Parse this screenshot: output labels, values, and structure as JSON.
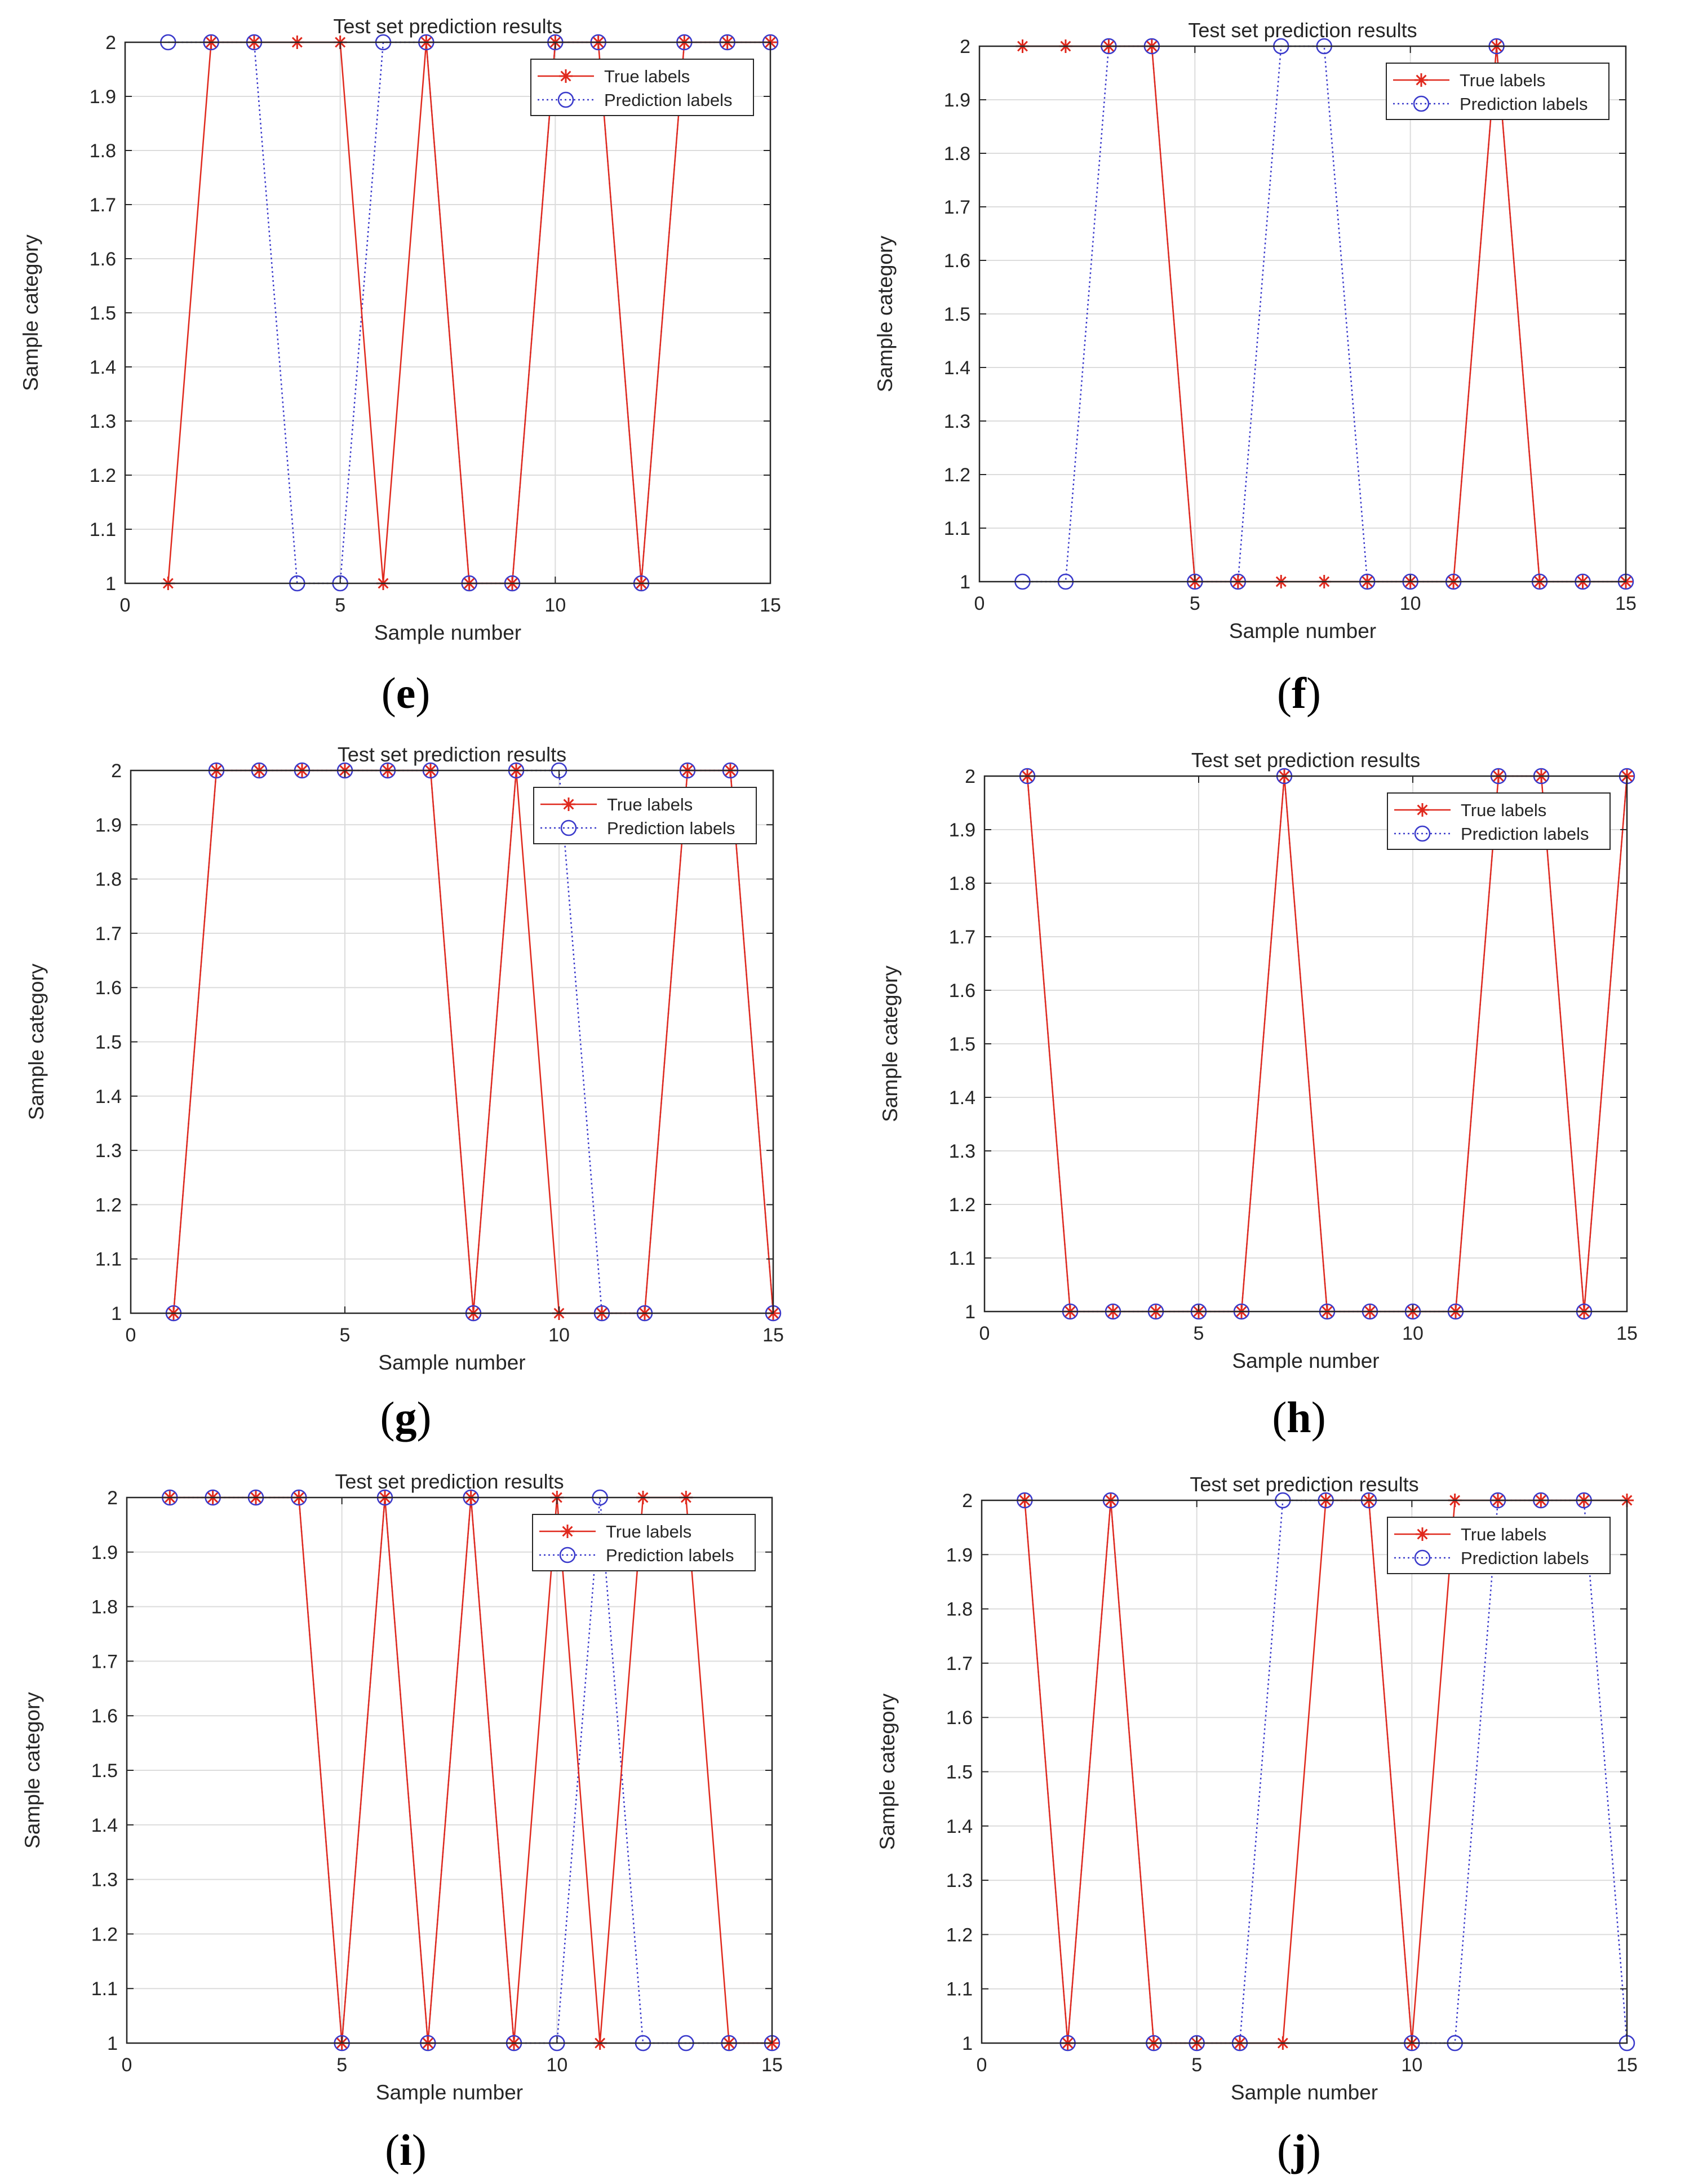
{
  "colors": {
    "true_series": "#e0291d",
    "pred_series": "#3a3acb",
    "grid": "#dcdcdc",
    "axis": "#262626",
    "text": "#262626",
    "legend_border": "#262626"
  },
  "chart_data": [
    {
      "panel": "e",
      "caption": "e",
      "type": "line",
      "title": "Test set prediction results",
      "xlabel": "Sample number",
      "ylabel": "Sample category",
      "xlim": [
        0,
        15
      ],
      "ylim": [
        1,
        2
      ],
      "xticks": [
        "0",
        "5",
        "10",
        "15"
      ],
      "yticks": [
        "1",
        "1.1",
        "1.2",
        "1.3",
        "1.4",
        "1.5",
        "1.6",
        "1.7",
        "1.8",
        "1.9",
        "2"
      ],
      "grid": true,
      "legend": "top-right",
      "x": [
        1,
        2,
        3,
        4,
        5,
        6,
        7,
        8,
        9,
        10,
        11,
        12,
        13,
        14,
        15
      ],
      "series": [
        {
          "name": "True labels",
          "style": "solid-star",
          "values": [
            1,
            2,
            2,
            2,
            2,
            1,
            2,
            1,
            1,
            2,
            2,
            1,
            2,
            2,
            2
          ]
        },
        {
          "name": "Prediction labels",
          "style": "dotted-circle",
          "values": [
            2,
            2,
            2,
            1,
            1,
            2,
            2,
            1,
            1,
            2,
            2,
            1,
            2,
            2,
            2
          ]
        }
      ]
    },
    {
      "panel": "f",
      "caption": "f",
      "type": "line",
      "title": "Test set prediction results",
      "xlabel": "Sample number",
      "ylabel": "Sample category",
      "xlim": [
        0,
        15
      ],
      "ylim": [
        1,
        2
      ],
      "xticks": [
        "0",
        "5",
        "10",
        "15"
      ],
      "yticks": [
        "1",
        "1.1",
        "1.2",
        "1.3",
        "1.4",
        "1.5",
        "1.6",
        "1.7",
        "1.8",
        "1.9",
        "2"
      ],
      "grid": true,
      "legend": "top-right",
      "x": [
        1,
        2,
        3,
        4,
        5,
        6,
        7,
        8,
        9,
        10,
        11,
        12,
        13,
        14,
        15
      ],
      "series": [
        {
          "name": "True labels",
          "style": "solid-star",
          "values": [
            2,
            2,
            2,
            2,
            1,
            1,
            1,
            1,
            1,
            1,
            1,
            2,
            1,
            1,
            1
          ]
        },
        {
          "name": "Prediction labels",
          "style": "dotted-circle",
          "values": [
            1,
            1,
            2,
            2,
            1,
            1,
            2,
            2,
            1,
            1,
            1,
            2,
            1,
            1,
            1
          ]
        }
      ]
    },
    {
      "panel": "g",
      "caption": "g",
      "type": "line",
      "title": "Test set prediction results",
      "xlabel": "Sample number",
      "ylabel": "Sample category",
      "xlim": [
        0,
        15
      ],
      "ylim": [
        1,
        2
      ],
      "xticks": [
        "0",
        "5",
        "10",
        "15"
      ],
      "yticks": [
        "1",
        "1.1",
        "1.2",
        "1.3",
        "1.4",
        "1.5",
        "1.6",
        "1.7",
        "1.8",
        "1.9",
        "2"
      ],
      "grid": true,
      "legend": "top-right",
      "x": [
        1,
        2,
        3,
        4,
        5,
        6,
        7,
        8,
        9,
        10,
        11,
        12,
        13,
        14,
        15
      ],
      "series": [
        {
          "name": "True labels",
          "style": "solid-star",
          "values": [
            1,
            2,
            2,
            2,
            2,
            2,
            2,
            1,
            2,
            1,
            1,
            1,
            2,
            2,
            1
          ]
        },
        {
          "name": "Prediction labels",
          "style": "dotted-circle",
          "values": [
            1,
            2,
            2,
            2,
            2,
            2,
            2,
            1,
            2,
            2,
            1,
            1,
            2,
            2,
            1
          ]
        }
      ]
    },
    {
      "panel": "h",
      "caption": "h",
      "type": "line",
      "title": "Test set prediction results",
      "xlabel": "Sample number",
      "ylabel": "Sample category",
      "xlim": [
        0,
        15
      ],
      "ylim": [
        1,
        2
      ],
      "xticks": [
        "0",
        "5",
        "10",
        "15"
      ],
      "yticks": [
        "1",
        "1.1",
        "1.2",
        "1.3",
        "1.4",
        "1.5",
        "1.6",
        "1.7",
        "1.8",
        "1.9",
        "2"
      ],
      "grid": true,
      "legend": "top-right",
      "x": [
        1,
        2,
        3,
        4,
        5,
        6,
        7,
        8,
        9,
        10,
        11,
        12,
        13,
        14,
        15
      ],
      "series": [
        {
          "name": "True labels",
          "style": "solid-star",
          "values": [
            2,
            1,
            1,
            1,
            1,
            1,
            2,
            1,
            1,
            1,
            1,
            2,
            2,
            1,
            2
          ]
        },
        {
          "name": "Prediction labels",
          "style": "dotted-circle",
          "values": [
            2,
            1,
            1,
            1,
            1,
            1,
            2,
            1,
            1,
            1,
            1,
            2,
            2,
            1,
            2
          ]
        }
      ]
    },
    {
      "panel": "i",
      "caption": "i",
      "type": "line",
      "title": "Test set prediction results",
      "xlabel": "Sample number",
      "ylabel": "Sample category",
      "xlim": [
        0,
        15
      ],
      "ylim": [
        1,
        2
      ],
      "xticks": [
        "0",
        "5",
        "10",
        "15"
      ],
      "yticks": [
        "1",
        "1.1",
        "1.2",
        "1.3",
        "1.4",
        "1.5",
        "1.6",
        "1.7",
        "1.8",
        "1.9",
        "2"
      ],
      "grid": true,
      "legend": "top-right",
      "x": [
        1,
        2,
        3,
        4,
        5,
        6,
        7,
        8,
        9,
        10,
        11,
        12,
        13,
        14,
        15
      ],
      "series": [
        {
          "name": "True labels",
          "style": "solid-star",
          "values": [
            2,
            2,
            2,
            2,
            1,
            2,
            1,
            2,
            1,
            2,
            1,
            2,
            2,
            1,
            1
          ]
        },
        {
          "name": "Prediction labels",
          "style": "dotted-circle",
          "values": [
            2,
            2,
            2,
            2,
            1,
            2,
            1,
            2,
            1,
            1,
            2,
            1,
            1,
            1,
            1
          ]
        }
      ]
    },
    {
      "panel": "j",
      "caption": "j",
      "type": "line",
      "title": "Test set prediction results",
      "xlabel": "Sample number",
      "ylabel": "Sample category",
      "xlim": [
        0,
        15
      ],
      "ylim": [
        1,
        2
      ],
      "xticks": [
        "0",
        "5",
        "10",
        "15"
      ],
      "yticks": [
        "1",
        "1.1",
        "1.2",
        "1.3",
        "1.4",
        "1.5",
        "1.6",
        "1.7",
        "1.8",
        "1.9",
        "2"
      ],
      "grid": true,
      "legend": "top-right",
      "x": [
        1,
        2,
        3,
        4,
        5,
        6,
        7,
        8,
        9,
        10,
        11,
        12,
        13,
        14,
        15
      ],
      "series": [
        {
          "name": "True labels",
          "style": "solid-star",
          "values": [
            2,
            1,
            2,
            1,
            1,
            1,
            1,
            2,
            2,
            1,
            2,
            2,
            2,
            2,
            2
          ]
        },
        {
          "name": "Prediction labels",
          "style": "dotted-circle",
          "values": [
            2,
            1,
            2,
            1,
            1,
            1,
            2,
            2,
            2,
            1,
            1,
            2,
            2,
            2,
            1
          ]
        }
      ]
    }
  ]
}
